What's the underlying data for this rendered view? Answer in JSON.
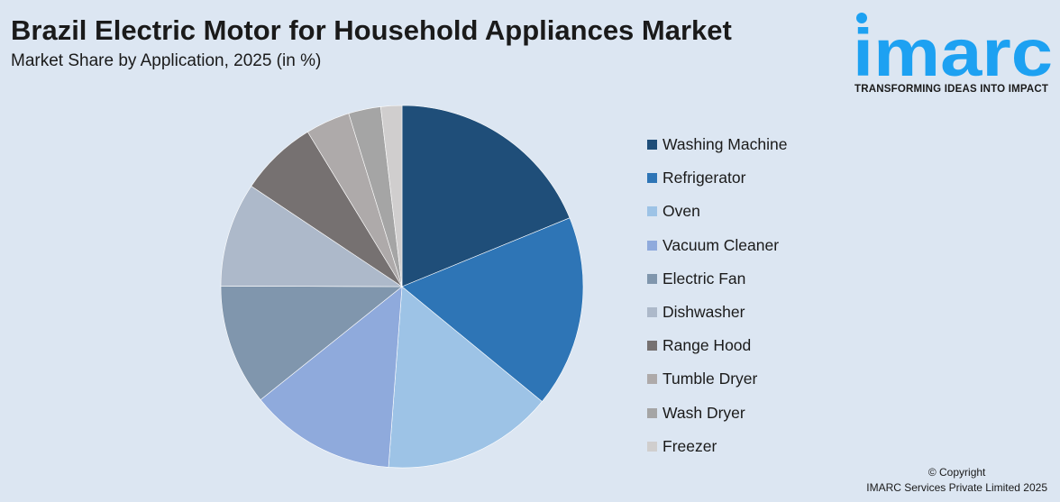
{
  "header": {
    "title": "Brazil Electric Motor for Household Appliances Market",
    "subtitle": "Market Share by Application, 2025 (in %)"
  },
  "logo": {
    "wordmark": "imarc",
    "tagline": "TRANSFORMING IDEAS INTO IMPACT",
    "color": "#1da1f2"
  },
  "footer": {
    "copyright": "© Copyright",
    "company": "IMARC Services Private Limited 2025"
  },
  "chart_data": {
    "type": "pie",
    "title": "Brazil Electric Motor for Household Appliances Market",
    "subtitle": "Market Share by Application, 2025 (in %)",
    "legend_position": "right",
    "start_angle": "12 o'clock",
    "direction": "clockwise",
    "slices": [
      {
        "label": "Washing Machine",
        "value": 19.0,
        "color": "#1f4e79"
      },
      {
        "label": "Refrigerator",
        "value": 17.3,
        "color": "#2e75b6"
      },
      {
        "label": "Oven",
        "value": 15.4,
        "color": "#9dc3e6"
      },
      {
        "label": "Vacuum Cleaner",
        "value": 13.2,
        "color": "#8faadc"
      },
      {
        "label": "Electric Fan",
        "value": 10.9,
        "color": "#8096ad"
      },
      {
        "label": "Dishwasher",
        "value": 9.4,
        "color": "#adb9ca"
      },
      {
        "label": "Range Hood",
        "value": 7.0,
        "color": "#767171"
      },
      {
        "label": "Tumble Dryer",
        "value": 4.0,
        "color": "#aeaaaa"
      },
      {
        "label": "Wash Dryer",
        "value": 2.9,
        "color": "#a5a5a5"
      },
      {
        "label": "Freezer",
        "value": 1.9,
        "color": "#d0cece"
      }
    ]
  }
}
